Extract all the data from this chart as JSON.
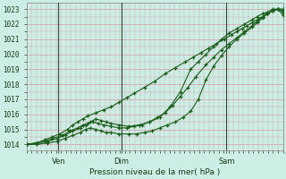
{
  "title": "Pression niveau de la mer( hPa )",
  "ylabel_values": [
    1014,
    1015,
    1016,
    1017,
    1018,
    1019,
    1020,
    1021,
    1022,
    1023
  ],
  "ylim": [
    1013.6,
    1023.4
  ],
  "bg_color": "#cceee4",
  "grid_color": "#d4a0a8",
  "line_color": "#1a5c1a",
  "vline_color": "#334433",
  "xtick_labels": [
    "Ven",
    "Dim",
    "Sam"
  ],
  "line1_x": [
    0,
    4,
    7,
    10,
    13,
    16,
    18,
    20,
    22,
    24,
    27,
    30,
    33,
    36,
    39,
    42,
    46,
    50,
    54,
    58,
    62,
    65,
    68,
    71,
    74,
    77,
    80,
    82,
    84,
    86,
    88,
    90,
    92,
    94,
    96,
    98,
    100
  ],
  "line1_y": [
    1014.0,
    1014.1,
    1014.3,
    1014.5,
    1014.7,
    1015.0,
    1015.3,
    1015.5,
    1015.7,
    1015.9,
    1016.1,
    1016.3,
    1016.5,
    1016.8,
    1017.1,
    1017.4,
    1017.8,
    1018.2,
    1018.7,
    1019.1,
    1019.5,
    1019.8,
    1020.1,
    1020.4,
    1020.7,
    1021.0,
    1021.3,
    1021.5,
    1021.7,
    1021.9,
    1022.1,
    1022.3,
    1022.5,
    1022.7,
    1022.9,
    1023.0,
    1023.0
  ],
  "line2_x": [
    0,
    4,
    7,
    10,
    14,
    17,
    20,
    22,
    24,
    26,
    28,
    30,
    33,
    36,
    39,
    42,
    45,
    48,
    51,
    54,
    57,
    60,
    63,
    66,
    70,
    73,
    76,
    79,
    82,
    85,
    88,
    90,
    92,
    94,
    96,
    98,
    100
  ],
  "line2_y": [
    1014.0,
    1014.1,
    1014.2,
    1014.4,
    1014.6,
    1014.9,
    1015.1,
    1015.3,
    1015.4,
    1015.5,
    1015.4,
    1015.3,
    1015.2,
    1015.1,
    1015.1,
    1015.2,
    1015.3,
    1015.5,
    1015.8,
    1016.1,
    1016.6,
    1017.2,
    1017.8,
    1018.5,
    1019.3,
    1019.8,
    1020.3,
    1020.7,
    1021.1,
    1021.5,
    1021.9,
    1022.2,
    1022.5,
    1022.7,
    1022.9,
    1023.0,
    1022.8
  ],
  "line3_x": [
    0,
    4,
    8,
    12,
    15,
    18,
    21,
    23,
    25,
    27,
    29,
    31,
    33,
    36,
    40,
    44,
    48,
    52,
    56,
    60,
    64,
    67,
    70,
    73,
    76,
    79,
    82,
    85,
    88,
    90,
    92,
    94,
    96,
    98,
    100
  ],
  "line3_y": [
    1014.0,
    1014.1,
    1014.2,
    1014.4,
    1014.6,
    1014.9,
    1015.1,
    1015.3,
    1015.5,
    1015.7,
    1015.6,
    1015.5,
    1015.4,
    1015.3,
    1015.2,
    1015.3,
    1015.5,
    1015.8,
    1016.5,
    1017.5,
    1019.0,
    1019.5,
    1020.0,
    1020.5,
    1021.0,
    1021.4,
    1021.7,
    1022.0,
    1022.3,
    1022.5,
    1022.7,
    1022.8,
    1023.0,
    1023.0,
    1022.9
  ],
  "line4_x": [
    0,
    4,
    8,
    12,
    15,
    18,
    21,
    23,
    25,
    27,
    29,
    31,
    33,
    36,
    40,
    43,
    46,
    49,
    52,
    55,
    58,
    61,
    64,
    67,
    70,
    73,
    76,
    79,
    82,
    85,
    88,
    90,
    92,
    94,
    96,
    98,
    100
  ],
  "line4_y": [
    1014.0,
    1014.0,
    1014.1,
    1014.2,
    1014.4,
    1014.6,
    1014.8,
    1015.0,
    1015.1,
    1015.0,
    1014.9,
    1014.8,
    1014.8,
    1014.7,
    1014.7,
    1014.7,
    1014.8,
    1014.9,
    1015.1,
    1015.3,
    1015.5,
    1015.8,
    1016.2,
    1017.0,
    1018.3,
    1019.2,
    1019.9,
    1020.5,
    1021.0,
    1021.4,
    1021.8,
    1022.1,
    1022.4,
    1022.7,
    1022.9,
    1023.0,
    1022.6
  ],
  "vline_x": [
    12.5,
    37.0,
    78.0
  ]
}
